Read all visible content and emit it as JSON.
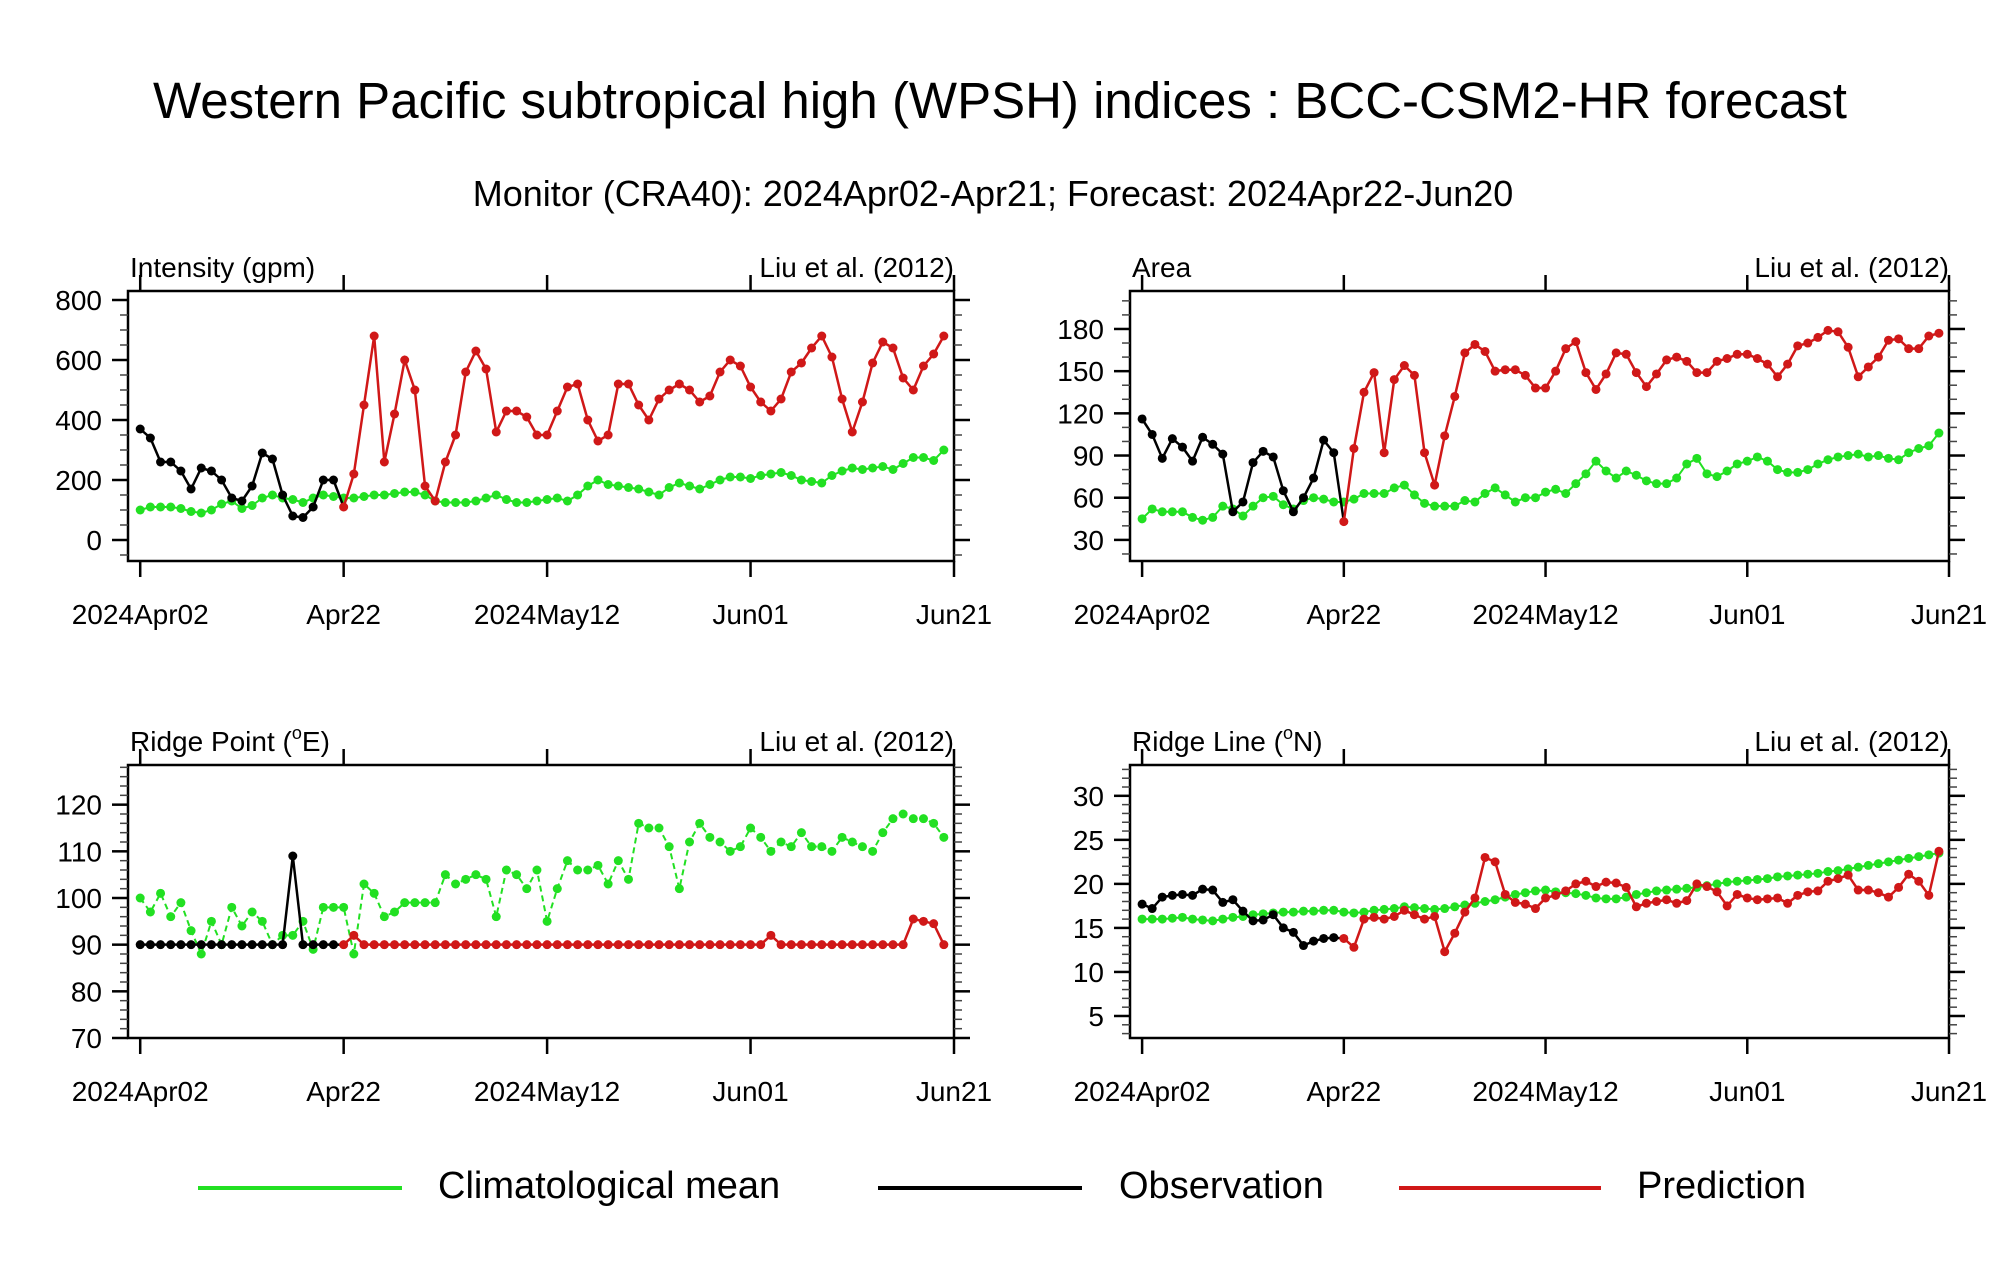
{
  "title": "Western Pacific subtropical high (WPSH) indices : BCC-CSM2-HR forecast",
  "subtitle": "Monitor (CRA40): 2024Apr02-Apr21; Forecast: 2024Apr22-Jun20",
  "colors": {
    "climatology": "#22e022",
    "observation": "#000000",
    "prediction": "#d01818"
  },
  "legend": [
    {
      "label": "Climatological mean",
      "series": "climatology"
    },
    {
      "label": "Observation",
      "series": "observation"
    },
    {
      "label": "Prediction",
      "series": "prediction"
    }
  ],
  "chart_data": [
    {
      "type": "line",
      "title_pre": "Intensity (gpm)",
      "title_sup": "",
      "title_post": "",
      "credit": "Liu et al. (2012)",
      "x_start": "2024Apr02",
      "x_unit": "day",
      "xlim": [
        -1.2,
        80
      ],
      "xticks": [
        0,
        20,
        40,
        60,
        80
      ],
      "xtick_labels": [
        "2024Apr02",
        "Apr22",
        "2024May12",
        "Jun01",
        "Jun21"
      ],
      "ylim": [
        -70,
        830
      ],
      "yticks": [
        0,
        200,
        400,
        600,
        800
      ],
      "minor_tick_step": 50,
      "climatology": [
        100,
        110,
        110,
        110,
        105,
        95,
        90,
        100,
        120,
        130,
        105,
        115,
        140,
        150,
        140,
        135,
        125,
        140,
        150,
        145,
        140,
        140,
        145,
        150,
        150,
        155,
        160,
        160,
        150,
        130,
        125,
        125,
        125,
        130,
        140,
        150,
        135,
        125,
        125,
        130,
        135,
        140,
        130,
        150,
        180,
        200,
        185,
        180,
        175,
        170,
        160,
        150,
        175,
        190,
        180,
        170,
        185,
        200,
        210,
        210,
        205,
        215,
        220,
        225,
        215,
        200,
        195,
        190,
        215,
        230,
        240,
        235,
        240,
        245,
        235,
        255,
        275,
        275,
        265,
        300
      ],
      "observation": [
        370,
        340,
        260,
        260,
        230,
        170,
        240,
        230,
        200,
        140,
        130,
        180,
        290,
        270,
        150,
        80,
        75,
        110,
        200,
        200
      ],
      "prediction": [
        110,
        220,
        450,
        680,
        260,
        420,
        600,
        500,
        180,
        130,
        260,
        350,
        560,
        630,
        570,
        360,
        430,
        430,
        410,
        350,
        350,
        430,
        510,
        520,
        400,
        330,
        350,
        520,
        520,
        450,
        400,
        470,
        500,
        520,
        500,
        460,
        480,
        560,
        600,
        580,
        510,
        460,
        430,
        470,
        560,
        590,
        640,
        680,
        610,
        470,
        360,
        460,
        590,
        660,
        640,
        540,
        500,
        580,
        620,
        680
      ]
    },
    {
      "type": "line",
      "title_pre": "Area",
      "title_sup": "",
      "title_post": "",
      "credit": "Liu et al. (2012)",
      "x_start": "2024Apr02",
      "x_unit": "day",
      "xlim": [
        -1.2,
        80
      ],
      "xticks": [
        0,
        20,
        40,
        60,
        80
      ],
      "xtick_labels": [
        "2024Apr02",
        "Apr22",
        "2024May12",
        "Jun01",
        "Jun21"
      ],
      "ylim": [
        15,
        207
      ],
      "yticks": [
        30,
        60,
        90,
        120,
        150,
        180
      ],
      "minor_tick_step": 10,
      "climatology": [
        45,
        52,
        50,
        50,
        50,
        46,
        44,
        46,
        54,
        52,
        47,
        54,
        60,
        61,
        55,
        52,
        58,
        60,
        59,
        57,
        57,
        59,
        63,
        63,
        63,
        67,
        69,
        62,
        56,
        54,
        54,
        54,
        58,
        57,
        63,
        67,
        62,
        57,
        60,
        60,
        64,
        66,
        63,
        70,
        77,
        86,
        79,
        74,
        79,
        76,
        72,
        70,
        70,
        74,
        84,
        88,
        77,
        75,
        79,
        84,
        86,
        89,
        86,
        80,
        78,
        78,
        80,
        84,
        87,
        89,
        90,
        91,
        89,
        90,
        88,
        87,
        92,
        95,
        97,
        106
      ],
      "observation": [
        116,
        105,
        88,
        102,
        96,
        86,
        103,
        98,
        91,
        50,
        57,
        85,
        93,
        89,
        65,
        50,
        60,
        74,
        101,
        92
      ],
      "prediction": [
        43,
        95,
        135,
        149,
        92,
        144,
        154,
        147,
        92,
        69,
        104,
        132,
        163,
        169,
        164,
        150,
        151,
        151,
        147,
        138,
        138,
        150,
        166,
        171,
        149,
        137,
        148,
        163,
        162,
        149,
        139,
        148,
        158,
        160,
        157,
        149,
        149,
        157,
        159,
        162,
        162,
        159,
        155,
        146,
        155,
        168,
        170,
        174,
        179,
        178,
        167,
        146,
        153,
        160,
        172,
        173,
        166,
        166,
        175,
        177
      ]
    },
    {
      "type": "line",
      "title_pre": "Ridge Point (",
      "title_sup": "o",
      "title_post": "E)",
      "credit": "Liu et al. (2012)",
      "x_start": "2024Apr02",
      "x_unit": "day",
      "xlim": [
        -1.2,
        80
      ],
      "xticks": [
        0,
        20,
        40,
        60,
        80
      ],
      "xtick_labels": [
        "2024Apr02",
        "Apr22",
        "2024May12",
        "Jun01",
        "Jun21"
      ],
      "ylim": [
        70,
        128.5
      ],
      "yticks": [
        70,
        80,
        90,
        100,
        110,
        120
      ],
      "minor_tick_step": 2,
      "dashed_climatology": true,
      "climatology": [
        100,
        97,
        101,
        96,
        99,
        93,
        88,
        95,
        90,
        98,
        94,
        97,
        95,
        90,
        92,
        92,
        95,
        89,
        98,
        98,
        98,
        88,
        103,
        101,
        96,
        97,
        99,
        99,
        99,
        99,
        105,
        103,
        104,
        105,
        104,
        96,
        106,
        105,
        102,
        106,
        95,
        102,
        108,
        106,
        106,
        107,
        103,
        108,
        104,
        116,
        115,
        115,
        111,
        102,
        112,
        116,
        113,
        112,
        110,
        111,
        115,
        113,
        110,
        112,
        111,
        114,
        111,
        111,
        110,
        113,
        112,
        111,
        110,
        114,
        117,
        118,
        117,
        117,
        116,
        113
      ],
      "observation": [
        90,
        90,
        90,
        90,
        90,
        90,
        90,
        90,
        90,
        90,
        90,
        90,
        90,
        90,
        90,
        109,
        90,
        90,
        90,
        90
      ],
      "prediction": [
        90,
        92,
        90,
        90,
        90,
        90,
        90,
        90,
        90,
        90,
        90,
        90,
        90,
        90,
        90,
        90,
        90,
        90,
        90,
        90,
        90,
        90,
        90,
        90,
        90,
        90,
        90,
        90,
        90,
        90,
        90,
        90,
        90,
        90,
        90,
        90,
        90,
        90,
        90,
        90,
        90,
        90,
        92,
        90,
        90,
        90,
        90,
        90,
        90,
        90,
        90,
        90,
        90,
        90,
        90,
        90,
        95.5,
        95,
        94.5,
        90
      ]
    },
    {
      "type": "line",
      "title_pre": "Ridge Line (",
      "title_sup": "o",
      "title_post": "N)",
      "credit": "Liu et al. (2012)",
      "x_start": "2024Apr02",
      "x_unit": "day",
      "xlim": [
        -1.2,
        80
      ],
      "xticks": [
        0,
        20,
        40,
        60,
        80
      ],
      "xtick_labels": [
        "2024Apr02",
        "Apr22",
        "2024May12",
        "Jun01",
        "Jun21"
      ],
      "ylim": [
        2.5,
        33.5
      ],
      "yticks": [
        5,
        10,
        15,
        20,
        25,
        30
      ],
      "minor_tick_step": 1,
      "climatology": [
        16,
        16,
        16,
        16.1,
        16.2,
        16,
        15.9,
        15.8,
        16,
        16.2,
        16.3,
        16.5,
        16.6,
        16.7,
        16.8,
        16.8,
        16.9,
        16.9,
        17,
        17,
        16.8,
        16.7,
        16.8,
        17,
        17.1,
        17.2,
        17.4,
        17.3,
        17.2,
        17.1,
        17.2,
        17.4,
        17.6,
        17.8,
        18,
        18.2,
        18.5,
        18.8,
        19,
        19.2,
        19.3,
        19.1,
        19,
        18.9,
        18.7,
        18.4,
        18.3,
        18.3,
        18.5,
        18.8,
        19,
        19.2,
        19.3,
        19.4,
        19.5,
        19.6,
        19.8,
        20,
        20.2,
        20.3,
        20.4,
        20.5,
        20.6,
        20.8,
        20.9,
        21,
        21.1,
        21.2,
        21.4,
        21.5,
        21.7,
        21.9,
        22.1,
        22.3,
        22.5,
        22.7,
        22.9,
        23.1,
        23.3,
        23.5
      ],
      "observation": [
        17.7,
        17.2,
        18.5,
        18.7,
        18.8,
        18.7,
        19.4,
        19.3,
        17.9,
        18.2,
        16.9,
        15.8,
        15.9,
        16.5,
        15,
        14.5,
        13,
        13.5,
        13.8,
        13.9
      ],
      "prediction": [
        13.8,
        12.8,
        16,
        16.2,
        16,
        16.3,
        17,
        16.5,
        16,
        16.3,
        12.3,
        14.4,
        16.8,
        18.4,
        23,
        22.5,
        18.8,
        17.9,
        17.7,
        17.2,
        18.4,
        18.7,
        19.2,
        20,
        20.3,
        19.7,
        20.2,
        20.1,
        19.6,
        17.4,
        17.8,
        18,
        18.2,
        17.8,
        18.1,
        20,
        19.7,
        19.1,
        17.5,
        18.8,
        18.4,
        18.2,
        18.3,
        18.4,
        17.8,
        18.7,
        19.1,
        19.2,
        20.3,
        20.6,
        21,
        19.3,
        19.3,
        19,
        18.5,
        19.6,
        21.1,
        20.3,
        18.7,
        23.7
      ]
    }
  ]
}
